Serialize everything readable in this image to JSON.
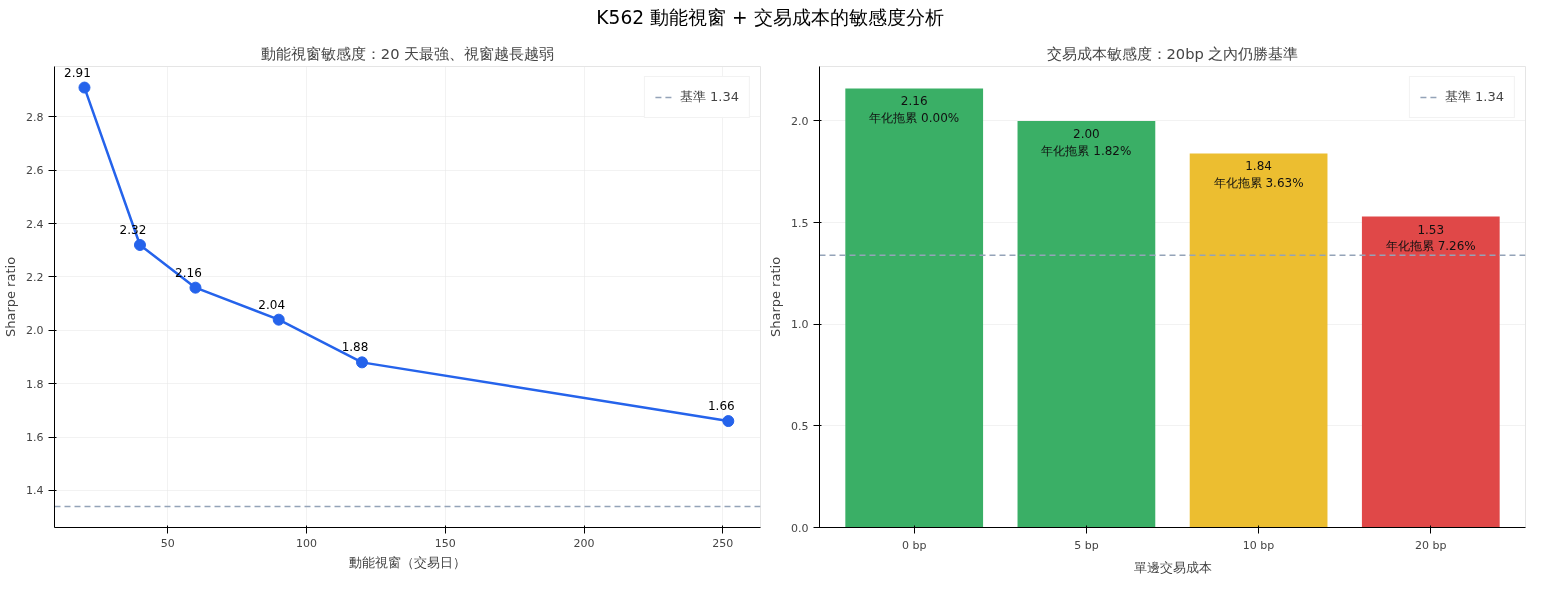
{
  "chart_data": [
    {
      "type": "line",
      "title": "動能視窗敏感度：20 天最強、視窗越長越弱",
      "annotations": [
        "K562 動能視窗 + 交易成本的敏感度分析"
      ],
      "xlabel": "動能視窗（交易日）",
      "ylabel": "Sharpe ratio",
      "x": [
        20,
        40,
        60,
        90,
        120,
        252
      ],
      "series": [
        {
          "color": "#2563eb",
          "values": [
            2.91,
            2.32,
            2.16,
            2.04,
            1.88,
            1.66
          ]
        }
      ],
      "xlim": [
        9.2,
        263.6
      ],
      "xticks": [
        50,
        100,
        150,
        200,
        250
      ],
      "ylim": [
        1.261,
        2.989
      ],
      "yticks": [
        1.4,
        1.6,
        1.8,
        {
          "value": 2,
          "label": "2.0"
        },
        2.2,
        2.4,
        2.6,
        2.8
      ],
      "ref_lines": [
        {
          "axis": "y",
          "value": 1.34,
          "label": "基準 1.34",
          "color": "#94a3b8",
          "line_style": "dashed"
        }
      ],
      "data_labels": true,
      "grid": true,
      "legend": "top right",
      "marker": "circle",
      "line_style": "solid"
    },
    {
      "type": "bar",
      "title": "交易成本敏感度：20bp 之內仍勝基準",
      "xlabel": "單邊交易成本",
      "ylabel": "Sharpe ratio",
      "categories": [
        "0 bp",
        "5 bp",
        "10 bp",
        "20 bp"
      ],
      "values": [
        2.16,
        2.0,
        1.84,
        1.53
      ],
      "colors": [
        "#3aaf66",
        "#3aaf66",
        "#ecbe30",
        "#e04848"
      ],
      "value_labels": [
        "2.16\n年化拖累 0.00%",
        "2.00\n年化拖累 1.82%",
        "1.84\n年化拖累 3.63%",
        "1.53\n年化拖累 7.26%"
      ],
      "ylim": [
        0,
        2.268
      ],
      "yticks": [
        {
          "value": 0,
          "label": "0.0"
        },
        0.5,
        {
          "value": 1,
          "label": "1.0"
        },
        1.5,
        {
          "value": 2,
          "label": "2.0"
        }
      ],
      "ref_lines": [
        {
          "axis": "y",
          "value": 1.34,
          "label": "基準 1.34",
          "color": "#94a3b8",
          "line_style": "dashed"
        }
      ],
      "grid": "y",
      "legend": "top right"
    }
  ]
}
